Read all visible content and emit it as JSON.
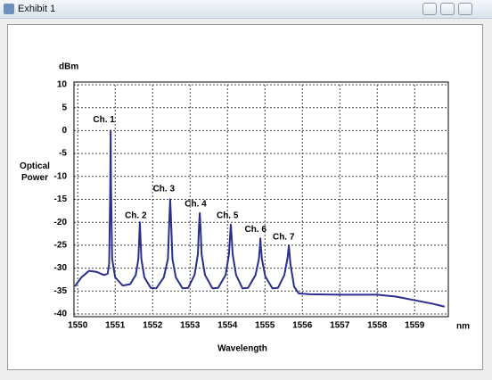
{
  "window": {
    "title": "Exhibit 1"
  },
  "chart_data": {
    "type": "line",
    "ylabel": "Optical Power",
    "yunit": "dBm",
    "xlabel": "Wavelength",
    "xunit": "nm",
    "xlim": [
      1549.9,
      1559.9
    ],
    "xticks": [
      1550,
      1551,
      1552,
      1553,
      1554,
      1555,
      1556,
      1557,
      1558,
      1559
    ],
    "ylim": [
      -40,
      10
    ],
    "yticks": [
      -40,
      -35,
      -30,
      -25,
      -20,
      -15,
      -10,
      -5,
      0,
      5,
      10
    ],
    "grid": true,
    "x": [
      1549.92,
      1550.1,
      1550.3,
      1550.5,
      1550.7,
      1550.8,
      1550.84,
      1550.87,
      1550.88,
      1550.89,
      1550.92,
      1551.0,
      1551.2,
      1551.4,
      1551.55,
      1551.62,
      1551.65,
      1551.66,
      1551.67,
      1551.7,
      1551.78,
      1551.95,
      1552.1,
      1552.3,
      1552.41,
      1552.45,
      1552.47,
      1552.49,
      1552.53,
      1552.62,
      1552.8,
      1552.95,
      1553.12,
      1553.21,
      1553.24,
      1553.26,
      1553.28,
      1553.31,
      1553.4,
      1553.6,
      1553.75,
      1553.95,
      1554.04,
      1554.07,
      1554.09,
      1554.11,
      1554.14,
      1554.23,
      1554.4,
      1554.55,
      1554.75,
      1554.84,
      1554.87,
      1554.88,
      1554.89,
      1554.92,
      1555.01,
      1555.2,
      1555.35,
      1555.52,
      1555.6,
      1555.63,
      1555.64,
      1555.65,
      1555.68,
      1555.78,
      1555.9,
      1556.2,
      1557,
      1558,
      1558.5,
      1559,
      1559.5,
      1559.8
    ],
    "series": [
      {
        "color": "#2b2f8c",
        "values": [
          -34,
          -32,
          -30.6,
          -30.8,
          -31.5,
          -31.2,
          -29,
          -12,
          0,
          -12,
          -28,
          -32,
          -33.8,
          -33.5,
          -31.5,
          -28,
          -22,
          -20,
          -22,
          -28,
          -32,
          -34.3,
          -34.4,
          -32,
          -28,
          -19,
          -15,
          -19,
          -28,
          -32,
          -34.4,
          -34.3,
          -31.5,
          -27,
          -21,
          -18,
          -21,
          -27,
          -31.5,
          -34.4,
          -34.3,
          -31.5,
          -27,
          -23,
          -20.5,
          -23,
          -27,
          -31.5,
          -34.4,
          -34.3,
          -31.5,
          -28,
          -25,
          -23.5,
          -25,
          -28,
          -31.8,
          -34.4,
          -34.3,
          -31.5,
          -28,
          -26,
          -25,
          -26,
          -29,
          -34,
          -35.5,
          -35.7,
          -35.8,
          -35.8,
          -36.2,
          -37,
          -37.8,
          -38.4
        ]
      }
    ],
    "annotations": [
      {
        "text": "Ch. 1",
        "x": 1550.7,
        "y": 2.3
      },
      {
        "text": "Ch. 2",
        "x": 1551.55,
        "y": -18.6
      },
      {
        "text": "Ch. 3",
        "x": 1552.3,
        "y": -12.7
      },
      {
        "text": "Ch. 4",
        "x": 1553.15,
        "y": -16
      },
      {
        "text": "Ch. 5",
        "x": 1554.0,
        "y": -18.6
      },
      {
        "text": "Ch. 6",
        "x": 1554.75,
        "y": -21.6
      },
      {
        "text": "Ch. 7",
        "x": 1555.5,
        "y": -23.2
      }
    ]
  }
}
